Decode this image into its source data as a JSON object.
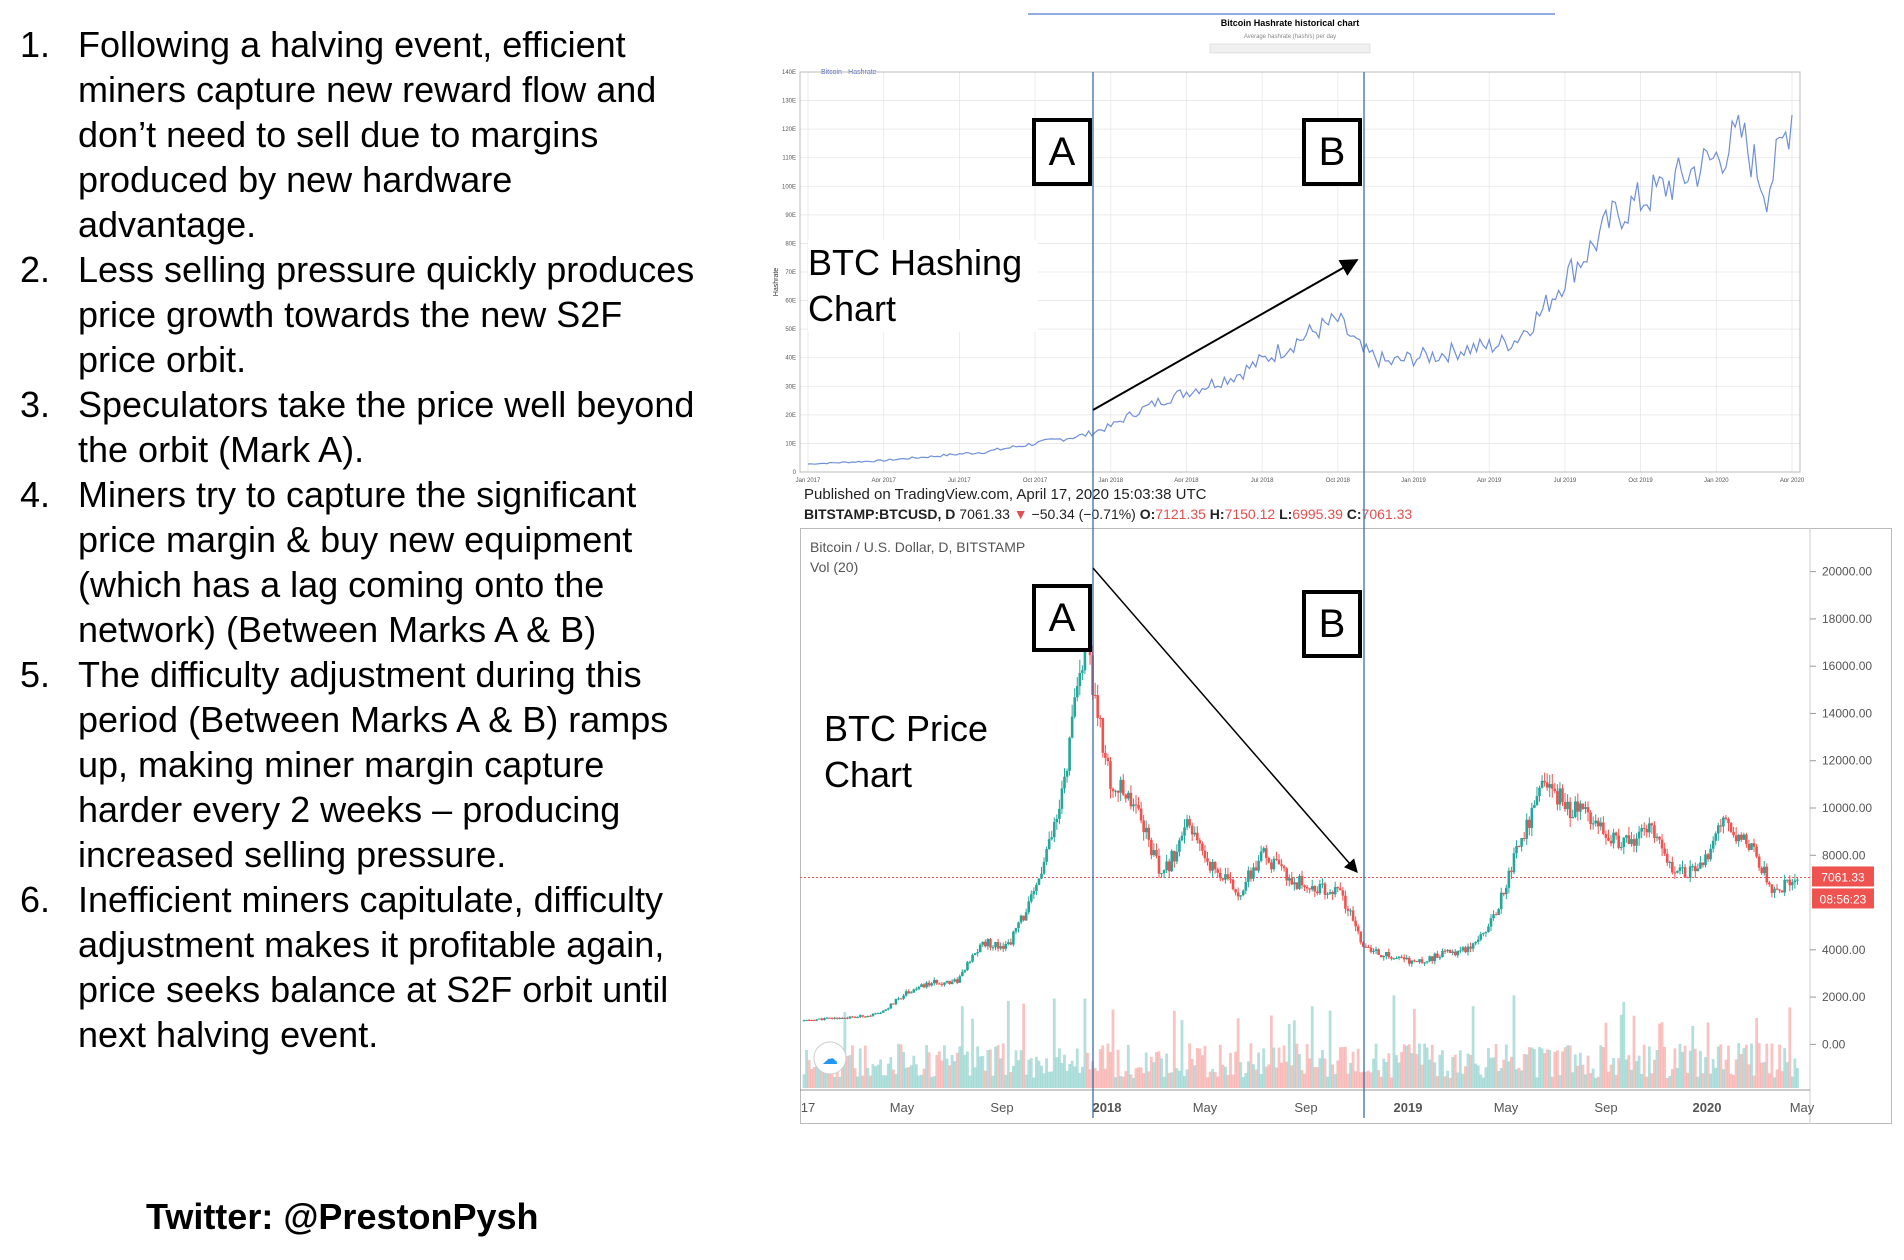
{
  "steps": [
    {
      "num": "1.",
      "text": "Following a halving event, efficient miners capture new reward flow and don’t need to sell due to margins produced by new hardware advantage."
    },
    {
      "num": "2.",
      "text": "Less selling pressure quickly produces price growth towards the new S2F price orbit."
    },
    {
      "num": "3.",
      "text": "Speculators take the price well beyond the orbit (Mark A)."
    },
    {
      "num": "4.",
      "text": "Miners try to capture the significant price margin & buy new equipment (which has a lag coming onto the network) (Between Marks A & B)"
    },
    {
      "num": "5.",
      "text": "The difficulty adjustment during this period (Between Marks A & B) ramps up, making miner margin capture harder every 2 weeks – producing increased selling pressure."
    },
    {
      "num": "6.",
      "text": "Inefficient miners capitulate, difficulty adjustment makes it profitable again, price seeks balance at S2F orbit until next halving event."
    }
  ],
  "twitter": "Twitter: @PrestonPysh",
  "overlay": {
    "hash_label": "BTC Hashing Chart",
    "price_label": "BTC Price Chart",
    "mark_a": "A",
    "mark_b": "B"
  },
  "price_header": {
    "published": "Published on TradingView.com, April 17, 2020 15:03:38 UTC",
    "symbol": "BITSTAMP:BTCUSD, D",
    "last": "7061.33",
    "change": "−50.34 (−0.71%)",
    "o_label": "O:",
    "o": "7121.35",
    "h_label": "H:",
    "h": "7150.12",
    "l_label": "L:",
    "l": "6995.39",
    "c_label": "C:",
    "c": "7061.33"
  },
  "colors": {
    "hash_line": "#6f8fd8",
    "up_candle": "#26a69a",
    "down_candle": "#ef5350",
    "price_tag": "#ef5350",
    "marker_line": "#3a6ea8"
  },
  "chart_data": [
    {
      "type": "line",
      "title": "Bitcoin Hashrate historical chart",
      "subtitle": "Average hashrate (hash/s) per day",
      "legend": "— Bitcoin - Hashrate",
      "ylabel": "Hashrate",
      "y_ticks": [
        "0",
        "10E",
        "20E",
        "30E",
        "40E",
        "50E",
        "60E",
        "70E",
        "80E",
        "90E",
        "100E",
        "110E",
        "120E",
        "130E",
        "140E"
      ],
      "x_ticks": [
        "Jan 2017",
        "Apr 2017",
        "Jul 2017",
        "Oct 2017",
        "Jan 2018",
        "Apr 2018",
        "Jul 2018",
        "Oct 2018",
        "Jan 2019",
        "Apr 2019",
        "Jul 2019",
        "Oct 2019",
        "Jan 2020",
        "Apr 2020"
      ],
      "ylim": [
        0,
        140
      ],
      "x": [
        "2017-01",
        "2017-02",
        "2017-03",
        "2017-04",
        "2017-05",
        "2017-06",
        "2017-07",
        "2017-08",
        "2017-09",
        "2017-10",
        "2017-11",
        "2017-12",
        "2018-01",
        "2018-02",
        "2018-03",
        "2018-04",
        "2018-05",
        "2018-06",
        "2018-07",
        "2018-08",
        "2018-09",
        "2018-10",
        "2018-11",
        "2018-12",
        "2019-01",
        "2019-02",
        "2019-03",
        "2019-04",
        "2019-05",
        "2019-06",
        "2019-07",
        "2019-08",
        "2019-09",
        "2019-10",
        "2019-11",
        "2019-12",
        "2020-01",
        "2020-02",
        "2020-03",
        "2020-04"
      ],
      "values": [
        2.8,
        3.2,
        3.6,
        4.0,
        4.8,
        5.5,
        6.3,
        7.0,
        8.5,
        10,
        11.5,
        13,
        16,
        21,
        25,
        28,
        31,
        34,
        39,
        44,
        49,
        53,
        42,
        38,
        40,
        41,
        43,
        44,
        46,
        55,
        68,
        78,
        90,
        95,
        100,
        105,
        110,
        118,
        98,
        125
      ],
      "grid": true
    },
    {
      "type": "candlestick",
      "title": "Bitcoin / U.S. Dollar, D, BITSTAMP",
      "subtitle": "Vol (20)",
      "y_ticks": [
        "20000.00",
        "18000.00",
        "16000.00",
        "14000.00",
        "12000.00",
        "10000.00",
        "8000.00",
        "4000.00",
        "2000.00",
        "0.00"
      ],
      "x_ticks": [
        "17",
        "May",
        "Sep",
        "2018",
        "May",
        "Sep",
        "2019",
        "May",
        "Sep",
        "2020",
        "May"
      ],
      "ylim": [
        -1000,
        21000
      ],
      "price_tag": "7061.33",
      "countdown_tag": "08:56:23",
      "x": [
        "2017-01",
        "2017-02",
        "2017-03",
        "2017-04",
        "2017-05",
        "2017-06",
        "2017-07",
        "2017-08",
        "2017-09",
        "2017-10",
        "2017-11",
        "2017-12",
        "2018-01",
        "2018-02",
        "2018-03",
        "2018-04",
        "2018-05",
        "2018-06",
        "2018-07",
        "2018-08",
        "2018-09",
        "2018-10",
        "2018-11",
        "2018-12",
        "2019-01",
        "2019-02",
        "2019-03",
        "2019-04",
        "2019-05",
        "2019-06",
        "2019-07",
        "2019-08",
        "2019-09",
        "2019-10",
        "2019-11",
        "2019-12",
        "2020-01",
        "2020-02",
        "2020-03",
        "2020-04"
      ],
      "values": [
        1000,
        1100,
        1150,
        1300,
        2200,
        2600,
        2700,
        4300,
        4200,
        6300,
        9800,
        17000,
        11000,
        10300,
        7000,
        9200,
        7500,
        6400,
        8000,
        7000,
        6600,
        6400,
        4000,
        3700,
        3450,
        3800,
        4100,
        5300,
        8500,
        11000,
        10000,
        9700,
        8300,
        9200,
        7600,
        7200,
        9300,
        8600,
        6400,
        7061
      ],
      "grid": false
    }
  ]
}
